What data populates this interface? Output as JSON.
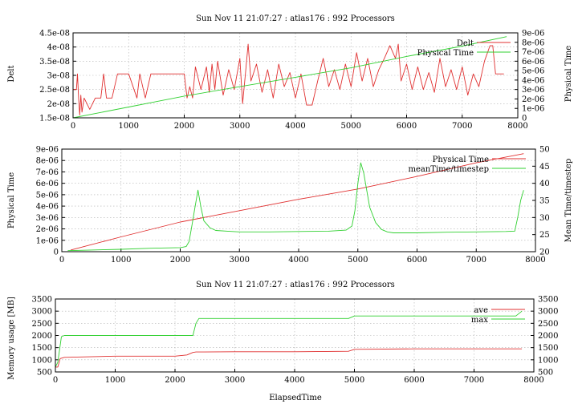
{
  "chart_data": [
    {
      "type": "line",
      "title": "Sun Nov 11 21:07:27 : atlas176 : 992 Processors",
      "xlabel": "",
      "x_ticks": [
        "0",
        "1000",
        "2000",
        "3000",
        "4000",
        "5000",
        "6000",
        "7000",
        "8000"
      ],
      "xlim": [
        0,
        8000
      ],
      "y_left": {
        "label": "Delt",
        "color": "#e03030",
        "lim": [
          1.5e-08,
          4.5e-08
        ],
        "ticks": [
          "1.5e-08",
          "2e-08",
          "2.5e-08",
          "3e-08",
          "3.5e-08",
          "4e-08",
          "4.5e-08"
        ]
      },
      "y_right": {
        "label": "Physical Time",
        "color": "#30d030",
        "lim": [
          0,
          9e-06
        ],
        "ticks": [
          "0",
          "1e-06",
          "2e-06",
          "3e-06",
          "4e-06",
          "5e-06",
          "6e-06",
          "7e-06",
          "8e-06",
          "9e-06"
        ]
      },
      "grid": true,
      "legend": "top-right",
      "series": [
        {
          "name": "Delt",
          "color": "#e03030",
          "axis": "left",
          "x": [
            0,
            60,
            80,
            100,
            120,
            140,
            160,
            200,
            300,
            400,
            500,
            550,
            600,
            700,
            800,
            900,
            1000,
            1150,
            1200,
            1300,
            1400,
            1500,
            1600,
            1700,
            1800,
            1900,
            2000,
            2050,
            2100,
            2150,
            2200,
            2300,
            2400,
            2450,
            2500,
            2550,
            2600,
            2700,
            2800,
            2900,
            3000,
            3050,
            3100,
            3150,
            3200,
            3300,
            3400,
            3500,
            3600,
            3700,
            3800,
            3900,
            4000,
            4100,
            4200,
            4300,
            4400,
            4500,
            4600,
            4700,
            4800,
            4900,
            5000,
            5100,
            5200,
            5300,
            5400,
            5500,
            5600,
            5700,
            5800,
            5850,
            5900,
            6000,
            6100,
            6200,
            6300,
            6400,
            6500,
            6600,
            6700,
            6800,
            6900,
            7000,
            7100,
            7200,
            7300,
            7400,
            7500,
            7550,
            7600,
            7700,
            7750
          ],
          "y": [
            2.5e-08,
            2.5e-08,
            3.05e-08,
            2.2e-08,
            1.6e-08,
            2.3e-08,
            1.7e-08,
            2.2e-08,
            1.8e-08,
            2.2e-08,
            2.2e-08,
            3.05e-08,
            2.2e-08,
            2.2e-08,
            3.05e-08,
            3.05e-08,
            3.05e-08,
            2.2e-08,
            3.05e-08,
            2.2e-08,
            3.05e-08,
            3.05e-08,
            3.05e-08,
            3.05e-08,
            3.05e-08,
            3.05e-08,
            3.05e-08,
            2.2e-08,
            2.6e-08,
            2.2e-08,
            3.3e-08,
            2.5e-08,
            3.3e-08,
            2.4e-08,
            3.4e-08,
            2.5e-08,
            3.5e-08,
            2.3e-08,
            3.2e-08,
            2.5e-08,
            3.6e-08,
            2e-08,
            3.05e-08,
            4.1e-08,
            2.8e-08,
            3.4e-08,
            2.4e-08,
            3.2e-08,
            2.2e-08,
            3.4e-08,
            2.6e-08,
            3.1e-08,
            2.2e-08,
            3.05e-08,
            1.95e-08,
            1.95e-08,
            2.8e-08,
            3.6e-08,
            2.6e-08,
            3.2e-08,
            2.5e-08,
            3.4e-08,
            2.6e-08,
            3.8e-08,
            2.8e-08,
            3.6e-08,
            2.6e-08,
            3.2e-08,
            3.6e-08,
            4.05e-08,
            3.6e-08,
            4.1e-08,
            2.8e-08,
            3.4e-08,
            2.5e-08,
            3.3e-08,
            2.5e-08,
            3.1e-08,
            2.4e-08,
            3.6e-08,
            2.6e-08,
            3.2e-08,
            2.5e-08,
            3.3e-08,
            2.3e-08,
            3.05e-08,
            2.6e-08,
            3.5e-08,
            4.05e-08,
            4.05e-08,
            3.05e-08,
            3.05e-08,
            3.05e-08
          ]
        },
        {
          "name": "Physical Time",
          "color": "#30d030",
          "axis": "right",
          "x": [
            0,
            1000,
            2000,
            3000,
            4000,
            5000,
            6000,
            7000,
            7800
          ],
          "y": [
            0,
            1.15e-06,
            2.3e-06,
            3.3e-06,
            4.3e-06,
            5.3e-06,
            6.5e-06,
            7.6e-06,
            8.6e-06
          ]
        }
      ]
    },
    {
      "type": "line",
      "title": "",
      "xlabel": "",
      "x_ticks": [
        "0",
        "1000",
        "2000",
        "3000",
        "4000",
        "5000",
        "6000",
        "7000",
        "8000"
      ],
      "xlim": [
        0,
        8000
      ],
      "y_left": {
        "label": "Physical Time",
        "color": "#e03030",
        "lim": [
          0,
          9e-06
        ],
        "ticks": [
          "0",
          "1e-06",
          "2e-06",
          "3e-06",
          "4e-06",
          "5e-06",
          "6e-06",
          "7e-06",
          "8e-06",
          "9e-06"
        ]
      },
      "y_right": {
        "label": "Mean Time/timestep",
        "color": "#30d030",
        "lim": [
          20,
          50
        ],
        "ticks": [
          "20",
          "25",
          "30",
          "35",
          "40",
          "45",
          "50"
        ]
      },
      "grid": true,
      "legend": "top-right",
      "series": [
        {
          "name": "Physical Time",
          "color": "#e03030",
          "axis": "left",
          "x": [
            150,
            1000,
            2000,
            3000,
            4000,
            5000,
            6000,
            7000,
            7800
          ],
          "y": [
            1.5e-07,
            1.3e-06,
            2.6e-06,
            3.6e-06,
            4.6e-06,
            5.5e-06,
            6.6e-06,
            7.8e-06,
            8.6e-06
          ]
        },
        {
          "name": "meanTime/timestep",
          "color": "#30d030",
          "axis": "right",
          "x": [
            100,
            500,
            1000,
            1500,
            2000,
            2100,
            2150,
            2200,
            2250,
            2300,
            2350,
            2400,
            2500,
            2600,
            2800,
            3000,
            3500,
            4000,
            4500,
            4800,
            4900,
            4950,
            5000,
            5050,
            5100,
            5150,
            5200,
            5300,
            5400,
            5500,
            5600,
            6000,
            6500,
            7000,
            7500,
            7650,
            7700,
            7750,
            7800
          ],
          "y": [
            20.3,
            20.5,
            20.7,
            21,
            21.2,
            21.5,
            23,
            28,
            33,
            38,
            33,
            29,
            27,
            26.2,
            26,
            25.8,
            25.8,
            25.9,
            26,
            26.3,
            27.5,
            32,
            40,
            46,
            43,
            38,
            33,
            28.5,
            26.5,
            25.8,
            25.5,
            25.5,
            25.7,
            25.8,
            25.9,
            26,
            30,
            35,
            38
          ]
        }
      ]
    },
    {
      "type": "line",
      "title": "Sun Nov 11 21:07:27 : atlas176 : 992 Processors",
      "xlabel": "ElapsedTime",
      "x_ticks": [
        "0",
        "1000",
        "2000",
        "3000",
        "4000",
        "5000",
        "6000",
        "7000",
        "8000"
      ],
      "xlim": [
        0,
        8000
      ],
      "y_left": {
        "label": "Memory usage [MB]",
        "color": "#e03030",
        "lim": [
          500,
          3500
        ],
        "ticks": [
          "500",
          "1000",
          "1500",
          "2000",
          "2500",
          "3000",
          "3500"
        ]
      },
      "y_right": {
        "label": "",
        "color": "#000000",
        "lim": [
          500,
          3500
        ],
        "ticks": [
          "500",
          "1000",
          "1500",
          "2000",
          "2500",
          "3000",
          "3500"
        ]
      },
      "grid": true,
      "legend": "top-right",
      "series": [
        {
          "name": "ave",
          "color": "#e03030",
          "axis": "left",
          "x": [
            0,
            40,
            80,
            150,
            1000,
            2000,
            2200,
            2300,
            2350,
            3000,
            4000,
            4900,
            5000,
            6000,
            7000,
            7800
          ],
          "y": [
            700,
            700,
            1050,
            1100,
            1150,
            1150,
            1200,
            1300,
            1320,
            1330,
            1330,
            1350,
            1430,
            1450,
            1450,
            1450
          ]
        },
        {
          "name": "max",
          "color": "#30d030",
          "axis": "left",
          "x": [
            0,
            40,
            100,
            150,
            1000,
            2000,
            2300,
            2350,
            2400,
            4900,
            5000,
            6000,
            7000,
            7700,
            7800
          ],
          "y": [
            700,
            900,
            1950,
            2000,
            2000,
            2000,
            2000,
            2500,
            2700,
            2700,
            2800,
            2800,
            2800,
            2800,
            3000
          ]
        }
      ]
    }
  ]
}
